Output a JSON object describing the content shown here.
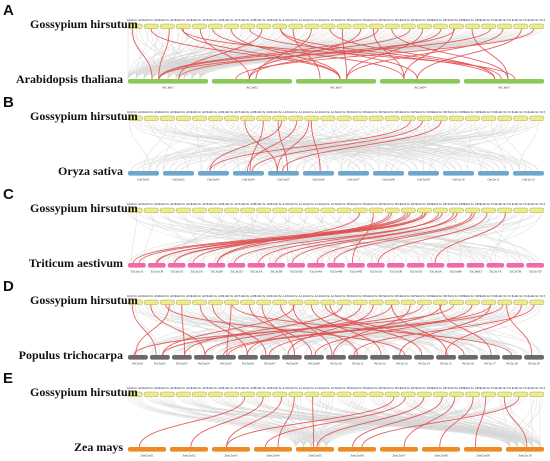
{
  "colors": {
    "gossypium": "#ecec8c",
    "gossypium_stroke": "#9a9a40",
    "background_links": "#d6d6d6",
    "highlight_links": "#e05050",
    "arabidopsis": "#8cc858",
    "oryza": "#6fa6cc",
    "triticum": "#f06aa8",
    "populus": "#6a6a6a",
    "zea": "#ef8a22"
  },
  "gossypium_chromosomes": [
    "GhiChr A01",
    "GhiChr A02",
    "GhiChr A03",
    "GhiChr A04",
    "GhiChr A05",
    "GhiChr A06",
    "GhiChr A07",
    "GhiChr A08",
    "GhiChr A09",
    "GhiChr A10",
    "GhiChr A11",
    "GhiChr A12",
    "GhiChr A13",
    "GhiChr D01",
    "GhiChr D02",
    "GhiChr D03",
    "GhiChr D04",
    "GhiChr D05",
    "GhiChr D06",
    "GhiChr D07",
    "GhiChr D08",
    "GhiChr D09",
    "GhiChr D10",
    "GhiChr D11",
    "GhiChr D12",
    "GhiChr D13"
  ],
  "panels": [
    {
      "label": "A",
      "top_species": "Gossypium hirsutum",
      "bottom_species": "Arabidopsis thaliana",
      "color_key": "arabidopsis",
      "bottom_chromosomes": [
        "AtChr01",
        "AtChr02",
        "AtChr03",
        "AtChr04",
        "AtChr05"
      ],
      "links": [
        [
          0,
          0
        ],
        [
          1,
          2
        ],
        [
          2,
          0
        ],
        [
          3,
          4
        ],
        [
          4,
          1
        ],
        [
          5,
          3
        ],
        [
          6,
          2
        ],
        [
          7,
          4
        ],
        [
          8,
          0
        ],
        [
          9,
          3
        ],
        [
          10,
          2
        ],
        [
          11,
          1
        ],
        [
          12,
          4
        ],
        [
          13,
          2
        ],
        [
          14,
          1
        ],
        [
          15,
          3
        ],
        [
          16,
          4
        ],
        [
          17,
          0
        ],
        [
          18,
          2
        ],
        [
          19,
          1
        ],
        [
          20,
          3
        ],
        [
          21,
          4
        ],
        [
          22,
          0
        ],
        [
          23,
          2
        ],
        [
          24,
          3
        ],
        [
          25,
          1
        ],
        [
          3,
          2
        ],
        [
          15,
          0
        ],
        [
          20,
          0
        ],
        [
          9,
          4
        ]
      ]
    },
    {
      "label": "B",
      "top_species": "Gossypium hirsutum",
      "bottom_species": "Oryza sativa",
      "color_key": "oryza",
      "bottom_chromosomes": [
        "OsChr01",
        "OsChr02",
        "OsChr03",
        "OsChr04",
        "OsChr05",
        "OsChr06",
        "OsChr07",
        "OsChr08",
        "OsChr09",
        "OsChr10",
        "OsChr11",
        "OsChr12"
      ],
      "links": [
        [
          7,
          4
        ],
        [
          8,
          3
        ],
        [
          9,
          2
        ],
        [
          9,
          4
        ],
        [
          10,
          3
        ],
        [
          11,
          4
        ],
        [
          11,
          5
        ],
        [
          17,
          2
        ],
        [
          18,
          3
        ],
        [
          19,
          4
        ]
      ]
    },
    {
      "label": "C",
      "top_species": "Gossypium hirsutum",
      "bottom_species": "Triticum aestivum",
      "color_key": "triticum",
      "bottom_chromosomes": [
        "TaChr1A",
        "TaChr1B",
        "TaChr1D",
        "TaChr2A",
        "TaChr2B",
        "TaChr2D",
        "TaChr3A",
        "TaChr3B",
        "TaChr3D",
        "TaChr4A",
        "TaChr4B",
        "TaChr4D",
        "TaChr5A",
        "TaChr5B",
        "TaChr5D",
        "TaChr6A",
        "TaChr6B",
        "TaChr6D",
        "TaChr7A",
        "TaChr7B",
        "TaChr7D"
      ],
      "links": [
        [
          17,
          0
        ],
        [
          17,
          1
        ],
        [
          17,
          2
        ],
        [
          18,
          0
        ],
        [
          18,
          1
        ],
        [
          16,
          3
        ],
        [
          16,
          4
        ],
        [
          19,
          5
        ],
        [
          19,
          6
        ],
        [
          20,
          7
        ],
        [
          20,
          8
        ],
        [
          21,
          9
        ],
        [
          21,
          10
        ],
        [
          22,
          12
        ],
        [
          23,
          15
        ],
        [
          15,
          11
        ],
        [
          14,
          4
        ],
        [
          18,
          2
        ]
      ]
    },
    {
      "label": "D",
      "top_species": "Gossypium hirsutum",
      "bottom_species": "Populus trichocarpa",
      "color_key": "populus",
      "bottom_chromosomes": [
        "PtChr01",
        "PtChr02",
        "PtChr03",
        "PtChr04",
        "PtChr05",
        "PtChr06",
        "PtChr07",
        "PtChr08",
        "PtChr09",
        "PtChr10",
        "PtChr11",
        "PtChr12",
        "PtChr13",
        "PtChr14",
        "PtChr15",
        "PtChr16",
        "PtChr17",
        "PtChr18",
        "PtChr19"
      ],
      "links": [
        [
          0,
          1
        ],
        [
          1,
          3
        ],
        [
          2,
          0
        ],
        [
          3,
          2
        ],
        [
          4,
          5
        ],
        [
          5,
          6
        ],
        [
          6,
          4
        ],
        [
          7,
          8
        ],
        [
          8,
          7
        ],
        [
          9,
          10
        ],
        [
          10,
          9
        ],
        [
          11,
          11
        ],
        [
          12,
          13
        ],
        [
          13,
          2
        ],
        [
          14,
          5
        ],
        [
          15,
          7
        ],
        [
          16,
          3
        ],
        [
          17,
          9
        ],
        [
          18,
          1
        ],
        [
          19,
          6
        ],
        [
          20,
          0
        ],
        [
          21,
          8
        ],
        [
          22,
          12
        ],
        [
          23,
          4
        ],
        [
          24,
          14
        ],
        [
          25,
          10
        ],
        [
          19,
          16
        ],
        [
          23,
          18
        ],
        [
          2,
          12
        ],
        [
          6,
          17
        ],
        [
          12,
          15
        ],
        [
          16,
          14
        ],
        [
          22,
          4
        ],
        [
          10,
          1
        ]
      ]
    },
    {
      "label": "E",
      "top_species": "Gossypium hirsutum",
      "bottom_species": "Zea mays",
      "color_key": "zea",
      "bottom_chromosomes": [
        "ZmChr01",
        "ZmChr02",
        "ZmChr03",
        "ZmChr04",
        "ZmChr05",
        "ZmChr06",
        "ZmChr07",
        "ZmChr08",
        "ZmChr09",
        "ZmChr10"
      ],
      "links": [
        [
          7,
          0
        ],
        [
          8,
          1
        ],
        [
          9,
          2
        ],
        [
          10,
          3
        ],
        [
          11,
          4
        ],
        [
          17,
          3
        ],
        [
          18,
          4
        ],
        [
          19,
          5
        ],
        [
          20,
          6
        ],
        [
          21,
          7
        ],
        [
          22,
          8
        ],
        [
          23,
          9
        ],
        [
          16,
          2
        ],
        [
          24,
          5
        ]
      ]
    }
  ]
}
